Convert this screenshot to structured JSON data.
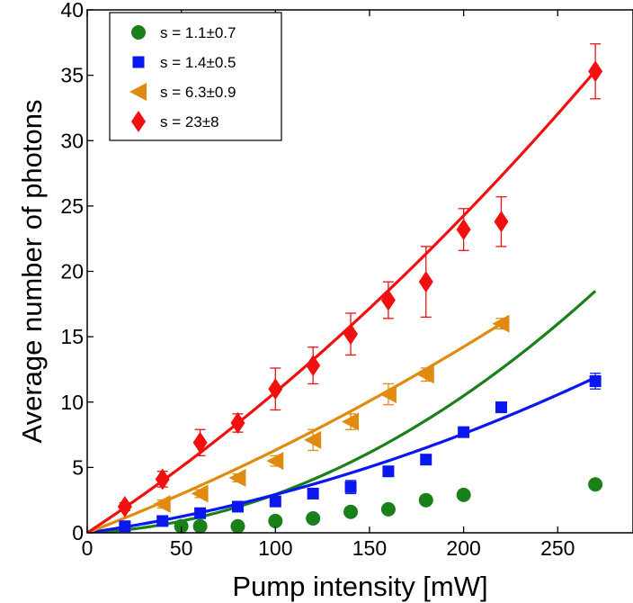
{
  "chart_data": {
    "type": "scatter",
    "xlabel": "Pump intensity [mW]",
    "ylabel": "Average number of photons",
    "xlim": [
      0,
      290
    ],
    "ylim": [
      0,
      40
    ],
    "xticks": [
      0,
      50,
      100,
      150,
      200,
      250
    ],
    "yticks": [
      0,
      5,
      10,
      15,
      20,
      25,
      30,
      35,
      40
    ],
    "grid": false,
    "legend_position": "top-left",
    "series": [
      {
        "name": "s = 1.1±0.7",
        "marker": "circle",
        "color": "#1a801a",
        "x": [
          50,
          60,
          80,
          100,
          120,
          140,
          160,
          180,
          200,
          270
        ],
        "y": [
          0.5,
          0.5,
          0.5,
          0.9,
          1.1,
          1.6,
          1.8,
          2.5,
          2.9,
          3.7
        ],
        "err": [
          0.1,
          0.1,
          0.1,
          0.1,
          0.1,
          0.1,
          0.1,
          0.1,
          0.1,
          0.1
        ],
        "fit": {
          "a": 0.0064,
          "b": 0.00023
        }
      },
      {
        "name": "s = 1.4±0.5",
        "marker": "square",
        "color": "#0a17f0",
        "x": [
          20,
          40,
          60,
          80,
          100,
          120,
          140,
          160,
          180,
          200,
          220,
          270
        ],
        "y": [
          0.5,
          0.9,
          1.5,
          2.0,
          2.4,
          3.0,
          3.5,
          4.7,
          5.6,
          7.7,
          9.6,
          11.6
        ],
        "err": [
          0.2,
          0.2,
          0.2,
          0.2,
          0.2,
          0.2,
          0.5,
          0.2,
          0.3,
          0.3,
          0.3,
          0.6
        ],
        "fit": {
          "a": 0.0205,
          "b": 8.7e-05
        }
      },
      {
        "name": "s = 6.3±0.9",
        "marker": "triangle-left",
        "color": "#e08a10",
        "x": [
          40,
          60,
          80,
          100,
          120,
          140,
          160,
          180,
          220
        ],
        "y": [
          2.2,
          3.0,
          4.2,
          5.5,
          7.1,
          8.5,
          10.6,
          12.1,
          16.0
        ],
        "err": [
          0.3,
          0.3,
          0.3,
          0.4,
          0.8,
          0.6,
          0.8,
          0.5,
          0.4
        ],
        "fit": {
          "a": 0.0554,
          "b": 7.87e-05
        }
      },
      {
        "name": "s = 23±8",
        "marker": "diamond",
        "color": "#f01010",
        "x": [
          20,
          40,
          60,
          80,
          100,
          120,
          140,
          160,
          180,
          200,
          220,
          270
        ],
        "y": [
          2.0,
          4.1,
          6.9,
          8.4,
          11.0,
          12.8,
          15.2,
          17.8,
          19.2,
          23.2,
          23.8,
          35.3
        ],
        "err": [
          0.3,
          0.6,
          1.0,
          0.7,
          1.6,
          1.4,
          1.6,
          1.4,
          2.7,
          1.6,
          1.9,
          2.1
        ],
        "fit": {
          "a": 0.0939,
          "b": 0.000137
        }
      }
    ]
  }
}
